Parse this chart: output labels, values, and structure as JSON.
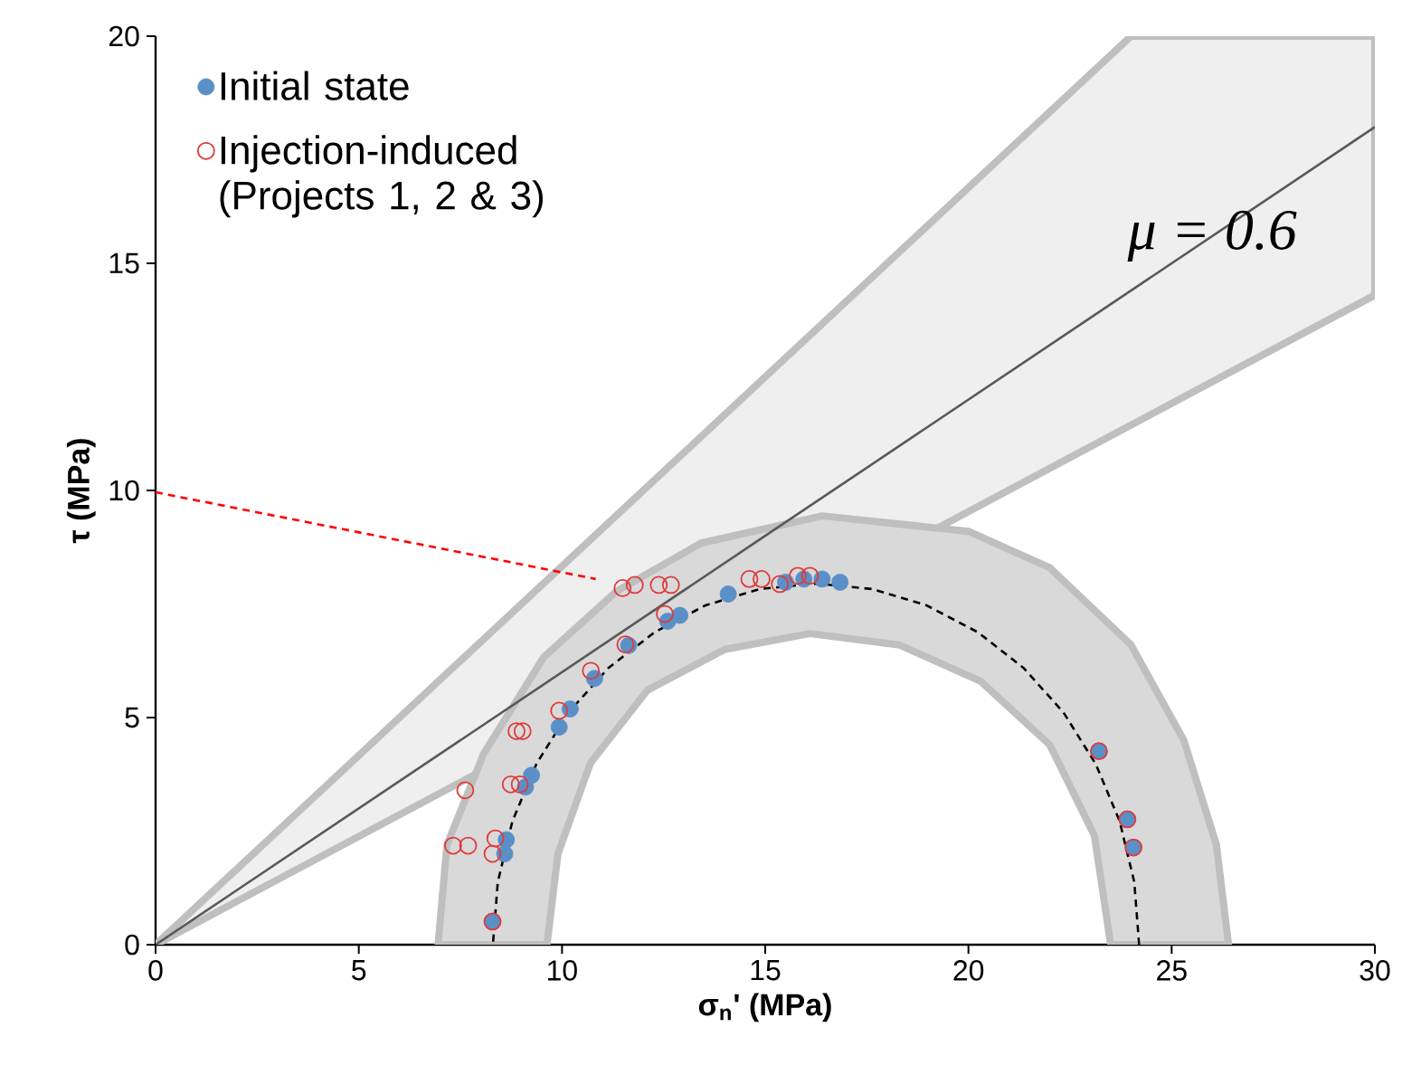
{
  "chart_data": {
    "type": "scatter",
    "xlabel": "σ$_{n}$' (MPa)",
    "ylabel": "τ (MPa)",
    "xlim": [
      0,
      30
    ],
    "ylim": [
      0,
      20
    ],
    "xticks": [
      0,
      5,
      10,
      15,
      20,
      25,
      30
    ],
    "yticks": [
      0,
      5,
      10,
      15,
      20
    ],
    "legend": "top left",
    "annotations": [
      {
        "text": "μ = 0.6",
        "x": 26,
        "y": 15.6
      }
    ],
    "series": [
      {
        "type": "area",
        "color": "#efefef",
        "x": [
          0,
          24,
          30,
          30
        ],
        "values": [
          0,
          20,
          20,
          14.3
        ]
      },
      {
        "type": "area",
        "color": "#d9d9d9",
        "x": [
          6.95,
          7.17,
          8.07,
          9.55,
          11.34,
          13.42,
          16.4,
          20,
          22,
          24,
          25.3,
          26.1,
          26.4,
          23.5,
          23.1,
          22,
          20.3,
          18.3,
          16.1,
          14,
          12.1,
          10.7,
          9.9,
          9.63
        ],
        "values": [
          0,
          2.2,
          4.2,
          6.33,
          7.78,
          8.84,
          9.44,
          9.1,
          8.3,
          6.6,
          4.5,
          2.2,
          0,
          0,
          2.4,
          4.4,
          5.8,
          6.6,
          6.85,
          6.5,
          5.6,
          4,
          2,
          0
        ]
      },
      {
        "type": "line",
        "color": "#595959",
        "line_style": "solid",
        "x": [
          0,
          15,
          30
        ],
        "values": [
          0,
          9,
          18
        ]
      },
      {
        "type": "line",
        "color": "#000000",
        "line_style": "dashed",
        "x": [
          24.2,
          24.08,
          23.72,
          23.13,
          22.34,
          21.36,
          20.23,
          18.97,
          17.63,
          16.25,
          14.87,
          13.53,
          12.28,
          11.14,
          10.16,
          9.37,
          8.78,
          8.42,
          8.3
        ],
        "values": [
          0,
          1.38,
          2.72,
          3.98,
          5.11,
          6.09,
          6.88,
          7.47,
          7.83,
          7.95,
          7.83,
          7.47,
          6.88,
          6.09,
          5.11,
          3.98,
          2.72,
          1.38,
          0
        ]
      },
      {
        "type": "line",
        "color": "#ff0000",
        "line_style": "dashed",
        "x": [
          0,
          10.83
        ],
        "values": [
          9.96,
          8.05
        ]
      },
      {
        "name": "Initial state",
        "color": "#5b8fc7",
        "marker": "circle",
        "x": [
          8.29,
          8.59,
          8.63,
          9.1,
          9.25,
          9.93,
          10.2,
          10.8,
          11.64,
          12.6,
          12.9,
          14.09,
          15.5,
          15.95,
          16.4,
          16.84,
          23.21,
          23.91,
          24.06
        ],
        "values": [
          0.51,
          2.0,
          2.31,
          3.47,
          3.73,
          4.79,
          5.19,
          5.86,
          6.59,
          7.12,
          7.25,
          7.72,
          7.98,
          8.05,
          8.05,
          7.98,
          4.26,
          2.76,
          2.14
        ]
      },
      {
        "name": "Injection-induced (Projects 1, 2 & 3)",
        "color": "#e03a3a",
        "marker": "circle",
        "x": [
          8.29,
          8.36,
          8.29,
          7.32,
          7.69,
          7.62,
          8.74,
          8.96,
          8.88,
          9.03,
          9.93,
          10.71,
          11.56,
          12.53,
          11.49,
          11.79,
          12.38,
          12.68,
          14.61,
          14.91,
          15.36,
          15.8,
          16.1,
          23.21,
          23.91,
          24.06
        ],
        "values": [
          0.51,
          2.34,
          2.0,
          2.18,
          2.18,
          3.4,
          3.53,
          3.53,
          4.7,
          4.7,
          5.15,
          6.03,
          6.61,
          7.28,
          7.85,
          7.92,
          7.92,
          7.92,
          8.05,
          8.05,
          7.94,
          8.12,
          8.12,
          4.26,
          2.76,
          2.14
        ]
      }
    ]
  }
}
